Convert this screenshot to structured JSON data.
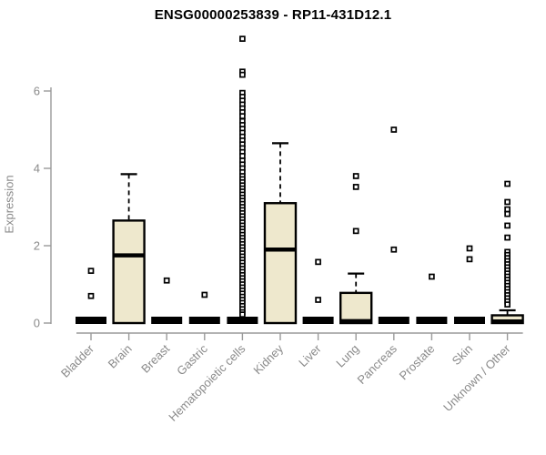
{
  "chart_data": {
    "type": "boxplot",
    "title": "ENSG00000253839 - RP11-431D12.1",
    "ylabel": "Expression",
    "xlabel": "",
    "ylim": [
      0,
      7.5
    ],
    "yticks": [
      0,
      2,
      4,
      6
    ],
    "grid": false,
    "legend": false,
    "colors": {
      "box_fill": "#EEE8CD",
      "box_stroke": "#000000",
      "axis_line": "#9a9a9a",
      "axis_text": "#8a8a8a",
      "title_text": "#000000",
      "outlier_fill": "#ffffff",
      "outlier_stroke": "#000000"
    },
    "categories": [
      "Bladder",
      "Brain",
      "Breast",
      "Gastric",
      "Hematopoietic cells",
      "Kidney",
      "Liver",
      "Lung",
      "Pancreas",
      "Prostate",
      "Skin",
      "Unknown / Other"
    ],
    "series": [
      {
        "category": "Bladder",
        "q1": 0,
        "median": 0,
        "q3": 0,
        "whisker_low": 0,
        "whisker_high": 0,
        "outliers": [
          1.35,
          0.7
        ]
      },
      {
        "category": "Brain",
        "q1": 0,
        "median": 1.75,
        "q3": 2.65,
        "whisker_low": 0,
        "whisker_high": 3.85,
        "outliers": []
      },
      {
        "category": "Breast",
        "q1": 0,
        "median": 0,
        "q3": 0,
        "whisker_low": 0,
        "whisker_high": 0,
        "outliers": [
          1.1
        ]
      },
      {
        "category": "Gastric",
        "q1": 0,
        "median": 0,
        "q3": 0,
        "whisker_low": 0,
        "whisker_high": 0,
        "outliers": [
          0.73
        ]
      },
      {
        "category": "Hematopoietic cells",
        "q1": 0,
        "median": 0,
        "q3": 0,
        "whisker_low": 0,
        "whisker_high": 0,
        "outliers": [
          7.35,
          6.5,
          6.42,
          5.95,
          5.85,
          5.75,
          5.65,
          5.55,
          5.45,
          5.35,
          5.22,
          5.12,
          5.02,
          4.92,
          4.82,
          4.72,
          4.62,
          4.52,
          4.42,
          4.32,
          4.2,
          4.1,
          4.0,
          3.9,
          3.8,
          3.72,
          3.64,
          3.56,
          3.48,
          3.4,
          3.32,
          3.24,
          3.16,
          3.08,
          3.0,
          2.92,
          2.84,
          2.76,
          2.68,
          2.6,
          2.52,
          2.44,
          2.36,
          2.28,
          2.2,
          2.12,
          2.04,
          1.96,
          1.88,
          1.8,
          1.72,
          1.64,
          1.56,
          1.48,
          1.4,
          1.32,
          1.24,
          1.16,
          1.08,
          1.0,
          0.92,
          0.84,
          0.76,
          0.68,
          0.6,
          0.52,
          0.44,
          0.36,
          0.28,
          0.22
        ]
      },
      {
        "category": "Kidney",
        "q1": 0,
        "median": 1.9,
        "q3": 3.1,
        "whisker_low": 0,
        "whisker_high": 4.65,
        "outliers": []
      },
      {
        "category": "Liver",
        "q1": 0,
        "median": 0,
        "q3": 0,
        "whisker_low": 0,
        "whisker_high": 0,
        "outliers": [
          1.58,
          0.6
        ]
      },
      {
        "category": "Lung",
        "q1": 0,
        "median": 0.05,
        "q3": 0.78,
        "whisker_low": 0,
        "whisker_high": 1.28,
        "outliers": [
          3.8,
          3.52,
          2.38
        ]
      },
      {
        "category": "Pancreas",
        "q1": 0,
        "median": 0,
        "q3": 0,
        "whisker_low": 0,
        "whisker_high": 0,
        "outliers": [
          5.0,
          1.9
        ]
      },
      {
        "category": "Prostate",
        "q1": 0,
        "median": 0,
        "q3": 0,
        "whisker_low": 0,
        "whisker_high": 0,
        "outliers": [
          1.2
        ]
      },
      {
        "category": "Skin",
        "q1": 0,
        "median": 0,
        "q3": 0,
        "whisker_low": 0,
        "whisker_high": 0,
        "outliers": [
          1.93,
          1.65
        ]
      },
      {
        "category": "Unknown / Other",
        "q1": 0,
        "median": 0.04,
        "q3": 0.2,
        "whisker_low": 0,
        "whisker_high": 0.33,
        "outliers": [
          3.6,
          3.13,
          2.94,
          2.82,
          2.52,
          2.21,
          1.84,
          1.76,
          1.68,
          1.6,
          1.52,
          1.44,
          1.36,
          1.28,
          1.2,
          1.12,
          1.04,
          0.96,
          0.88,
          0.8,
          0.72,
          0.64,
          0.56,
          0.48
        ]
      }
    ]
  }
}
